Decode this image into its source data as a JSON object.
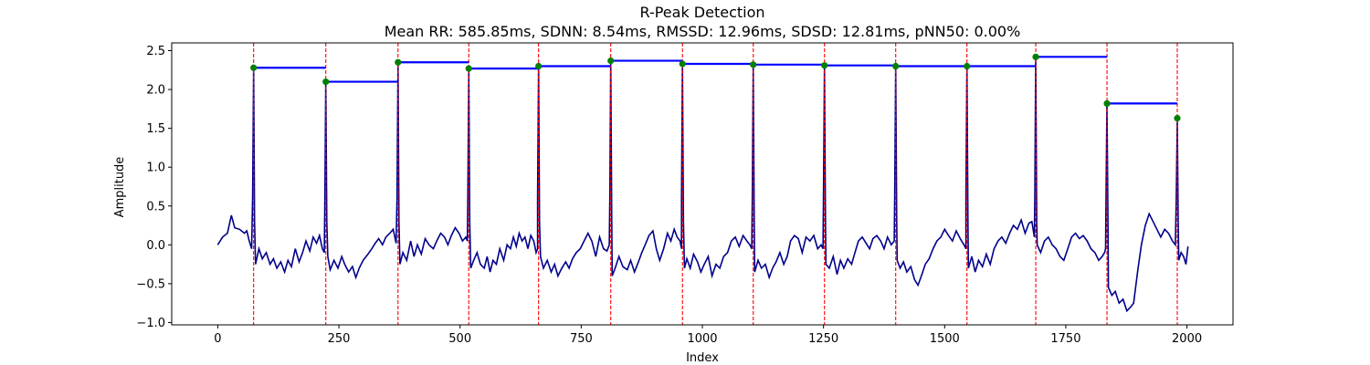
{
  "chart_data": {
    "type": "line",
    "title": "R-Peak Detection",
    "subtitle": "Mean RR: 585.85ms, SDNN: 8.54ms, RMSSD: 12.96ms, SDSD: 12.81ms, pNN50: 0.00%",
    "xlabel": "Index",
    "ylabel": "Amplitude",
    "xlim": [
      -95,
      2095
    ],
    "ylim": [
      -1.03,
      2.6
    ],
    "xticks": [
      0,
      250,
      500,
      750,
      1000,
      1250,
      1500,
      1750,
      2000
    ],
    "yticks": [
      -1.0,
      -0.5,
      0.0,
      0.5,
      1.0,
      1.5,
      2.0,
      2.5
    ],
    "xtick_labels": [
      "0",
      "250",
      "500",
      "750",
      "1000",
      "1250",
      "1500",
      "1750",
      "2000"
    ],
    "ytick_labels": [
      "−1.0",
      "−0.5",
      "0.0",
      "0.5",
      "1.0",
      "1.5",
      "2.0",
      "2.5"
    ],
    "grid": false,
    "colors": {
      "signal": "#00008b",
      "peak_marker": "#008000",
      "peak_line": "#ff0000",
      "rr_segment": "#0000ff"
    },
    "r_peaks": [
      {
        "x": 74,
        "y": 2.28
      },
      {
        "x": 223,
        "y": 2.1
      },
      {
        "x": 372,
        "y": 2.35
      },
      {
        "x": 518,
        "y": 2.27
      },
      {
        "x": 662,
        "y": 2.3
      },
      {
        "x": 811,
        "y": 2.37
      },
      {
        "x": 959,
        "y": 2.33
      },
      {
        "x": 1105,
        "y": 2.32
      },
      {
        "x": 1252,
        "y": 2.31
      },
      {
        "x": 1399,
        "y": 2.3
      },
      {
        "x": 1546,
        "y": 2.3
      },
      {
        "x": 1688,
        "y": 2.42
      },
      {
        "x": 1835,
        "y": 1.82
      },
      {
        "x": 1980,
        "y": 1.63
      }
    ],
    "baseline_segments": [
      {
        "x": [
          0,
          10,
          20,
          28,
          35,
          45,
          55,
          60,
          65,
          70
        ],
        "y": [
          0.0,
          0.1,
          0.15,
          0.38,
          0.22,
          0.2,
          0.15,
          0.18,
          0.05,
          -0.05
        ]
      },
      {
        "x": [
          78,
          85,
          92,
          100,
          108,
          115,
          122,
          130,
          138,
          145,
          152,
          160,
          168,
          175,
          182,
          190,
          197,
          204,
          210,
          216,
          220
        ],
        "y": [
          -0.25,
          -0.05,
          -0.18,
          -0.1,
          -0.25,
          -0.18,
          -0.3,
          -0.22,
          -0.35,
          -0.2,
          -0.28,
          -0.05,
          -0.22,
          -0.1,
          0.05,
          -0.08,
          0.1,
          0.02,
          0.12,
          -0.05,
          -0.1
        ]
      },
      {
        "x": [
          227,
          232,
          240,
          248,
          256,
          262,
          270,
          278,
          285,
          292,
          300,
          310,
          318,
          325,
          332,
          340,
          347,
          355,
          362,
          368
        ],
        "y": [
          -0.15,
          -0.32,
          -0.2,
          -0.3,
          -0.15,
          -0.25,
          -0.35,
          -0.28,
          -0.42,
          -0.3,
          -0.2,
          -0.12,
          -0.05,
          0.02,
          0.08,
          0.0,
          0.1,
          0.15,
          0.2,
          0.02
        ]
      },
      {
        "x": [
          376,
          382,
          390,
          398,
          405,
          412,
          420,
          428,
          436,
          445,
          452,
          460,
          468,
          475,
          482,
          490,
          498,
          505,
          512,
          515
        ],
        "y": [
          -0.25,
          -0.1,
          -0.2,
          0.05,
          -0.15,
          0.0,
          -0.12,
          0.08,
          0.0,
          -0.05,
          0.05,
          0.15,
          0.1,
          0.0,
          0.12,
          0.22,
          0.15,
          0.05,
          0.1,
          0.05
        ]
      },
      {
        "x": [
          522,
          528,
          535,
          542,
          550,
          556,
          562,
          568,
          575,
          582,
          590,
          597,
          604,
          610,
          616,
          622,
          628,
          634,
          640,
          646,
          652,
          657,
          660
        ],
        "y": [
          -0.3,
          -0.2,
          -0.1,
          -0.25,
          -0.3,
          -0.15,
          -0.35,
          -0.2,
          -0.25,
          -0.05,
          -0.2,
          0.0,
          -0.05,
          0.1,
          -0.02,
          0.15,
          0.05,
          0.1,
          -0.05,
          0.12,
          0.05,
          -0.1,
          -0.05
        ]
      },
      {
        "x": [
          666,
          672,
          680,
          688,
          695,
          702,
          710,
          718,
          725,
          732,
          740,
          748,
          756,
          764,
          772,
          780,
          788,
          796,
          803,
          808
        ],
        "y": [
          -0.15,
          -0.3,
          -0.2,
          -0.35,
          -0.25,
          -0.4,
          -0.3,
          -0.22,
          -0.3,
          -0.18,
          -0.1,
          -0.05,
          0.05,
          0.15,
          0.05,
          -0.15,
          0.1,
          -0.05,
          -0.08,
          0.0
        ]
      },
      {
        "x": [
          814,
          820,
          828,
          836,
          845,
          852,
          860,
          868,
          875,
          882,
          890,
          898,
          905,
          912,
          920,
          928,
          935,
          942,
          948,
          954,
          957
        ],
        "y": [
          -0.4,
          -0.3,
          -0.15,
          -0.28,
          -0.32,
          -0.2,
          -0.35,
          -0.22,
          -0.1,
          0.0,
          0.12,
          0.18,
          -0.05,
          -0.2,
          -0.05,
          0.15,
          0.05,
          0.2,
          0.1,
          0.05,
          -0.05
        ]
      },
      {
        "x": [
          963,
          968,
          975,
          982,
          990,
          997,
          1004,
          1012,
          1020,
          1028,
          1036,
          1044,
          1052,
          1060,
          1068,
          1076,
          1084,
          1092,
          1098,
          1102
        ],
        "y": [
          -0.3,
          -0.18,
          -0.3,
          -0.12,
          -0.22,
          -0.35,
          -0.25,
          -0.15,
          -0.4,
          -0.25,
          -0.3,
          -0.15,
          -0.1,
          0.05,
          0.1,
          -0.02,
          0.12,
          0.05,
          0.0,
          -0.05
        ]
      },
      {
        "x": [
          1108,
          1115,
          1122,
          1130,
          1138,
          1145,
          1152,
          1160,
          1168,
          1175,
          1182,
          1190,
          1198,
          1206,
          1214,
          1222,
          1230,
          1238,
          1245,
          1249
        ],
        "y": [
          -0.35,
          -0.2,
          -0.3,
          -0.25,
          -0.42,
          -0.3,
          -0.22,
          -0.1,
          -0.25,
          -0.15,
          0.05,
          0.12,
          0.08,
          -0.1,
          0.1,
          0.05,
          0.12,
          -0.05,
          0.0,
          -0.05
        ]
      },
      {
        "x": [
          1255,
          1262,
          1270,
          1278,
          1285,
          1292,
          1300,
          1308,
          1315,
          1322,
          1330,
          1338,
          1345,
          1352,
          1360,
          1368,
          1375,
          1382,
          1390,
          1396
        ],
        "y": [
          -0.25,
          -0.3,
          -0.15,
          -0.38,
          -0.2,
          -0.3,
          -0.18,
          -0.25,
          -0.1,
          0.05,
          0.1,
          0.02,
          -0.05,
          0.08,
          0.12,
          0.05,
          -0.05,
          0.1,
          0.0,
          0.05
        ]
      },
      {
        "x": [
          1402,
          1408,
          1415,
          1422,
          1430,
          1438,
          1445,
          1452,
          1460,
          1468,
          1476,
          1484,
          1492,
          1500,
          1508,
          1516,
          1524,
          1532,
          1540,
          1544
        ],
        "y": [
          -0.2,
          -0.3,
          -0.22,
          -0.35,
          -0.28,
          -0.45,
          -0.52,
          -0.4,
          -0.25,
          -0.18,
          -0.05,
          0.05,
          0.1,
          0.2,
          0.12,
          0.05,
          0.18,
          0.08,
          0.0,
          -0.05
        ]
      },
      {
        "x": [
          1549,
          1556,
          1563,
          1570,
          1578,
          1586,
          1594,
          1602,
          1610,
          1618,
          1626,
          1634,
          1642,
          1650,
          1658,
          1666,
          1674,
          1680,
          1685
        ],
        "y": [
          -0.3,
          -0.15,
          -0.35,
          -0.2,
          -0.28,
          -0.12,
          -0.25,
          -0.05,
          0.05,
          0.1,
          0.02,
          0.15,
          0.25,
          0.2,
          0.32,
          0.15,
          0.28,
          0.3,
          0.1
        ]
      },
      {
        "x": [
          1691,
          1698,
          1706,
          1714,
          1722,
          1730,
          1738,
          1746,
          1754,
          1762,
          1770,
          1778,
          1786,
          1794,
          1802,
          1810,
          1818,
          1825,
          1830,
          1832
        ],
        "y": [
          0.0,
          -0.1,
          0.05,
          0.1,
          0.0,
          -0.05,
          -0.15,
          -0.2,
          -0.05,
          0.1,
          0.15,
          0.08,
          0.12,
          0.05,
          -0.05,
          -0.1,
          -0.2,
          -0.15,
          -0.1,
          -0.05
        ]
      },
      {
        "x": [
          1838,
          1845,
          1852,
          1860,
          1868,
          1876,
          1884,
          1890,
          1898,
          1906,
          1914,
          1922,
          1930,
          1938,
          1946,
          1954,
          1962,
          1970,
          1976
        ],
        "y": [
          -0.55,
          -0.65,
          -0.6,
          -0.75,
          -0.7,
          -0.85,
          -0.8,
          -0.75,
          -0.35,
          0.0,
          0.25,
          0.4,
          0.3,
          0.2,
          0.1,
          0.2,
          0.15,
          0.05,
          0.0
        ]
      },
      {
        "x": [
          1983,
          1988,
          1993,
          1998,
          2002
        ],
        "y": [
          -0.2,
          -0.1,
          -0.15,
          -0.25,
          -0.02
        ]
      }
    ]
  }
}
